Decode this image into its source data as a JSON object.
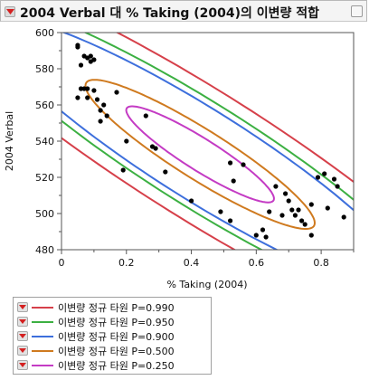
{
  "header": {
    "title": "2004 Verbal 대 % Taking (2004)의 이변량 적합"
  },
  "colors": {
    "p990": "#d6404a",
    "p950": "#3cb042",
    "p900": "#3d6fdc",
    "p500": "#cf7a1f",
    "p250": "#c43bc4",
    "points": "#000000",
    "disclosure": "#d42020"
  },
  "legend": {
    "items": [
      {
        "label": "이변량 정규 타원 P=0.990",
        "color": "#d6404a"
      },
      {
        "label": "이변량 정규 타원 P=0.950",
        "color": "#3cb042"
      },
      {
        "label": "이변량 정규 타원 P=0.900",
        "color": "#3d6fdc"
      },
      {
        "label": "이변량 정규 타원 P=0.500",
        "color": "#cf7a1f"
      },
      {
        "label": "이변량 정규 타원 P=0.250",
        "color": "#c43bc4"
      }
    ]
  },
  "chart_data": {
    "type": "scatter",
    "xlabel": "% Taking (2004)",
    "ylabel": "2004 Verbal",
    "xlim": [
      0,
      0.9
    ],
    "ylim": [
      480,
      600
    ],
    "xticks": [
      "0",
      "0.2",
      "0.4",
      "0.6",
      "0.8"
    ],
    "xtick_values": [
      0,
      0.2,
      0.4,
      0.6,
      0.8
    ],
    "yticks": [
      "480",
      "500",
      "520",
      "540",
      "560",
      "580",
      "600"
    ],
    "ytick_values": [
      480,
      500,
      520,
      540,
      560,
      580,
      600
    ],
    "grid": false,
    "points": [
      [
        0.05,
        593
      ],
      [
        0.05,
        592
      ],
      [
        0.07,
        587
      ],
      [
        0.08,
        586
      ],
      [
        0.09,
        584
      ],
      [
        0.1,
        585
      ],
      [
        0.09,
        587
      ],
      [
        0.06,
        582
      ],
      [
        0.06,
        569
      ],
      [
        0.07,
        569
      ],
      [
        0.08,
        569
      ],
      [
        0.1,
        568
      ],
      [
        0.08,
        564
      ],
      [
        0.05,
        564
      ],
      [
        0.11,
        563
      ],
      [
        0.13,
        560
      ],
      [
        0.12,
        557
      ],
      [
        0.14,
        554
      ],
      [
        0.17,
        567
      ],
      [
        0.12,
        551
      ],
      [
        0.2,
        540
      ],
      [
        0.19,
        524
      ],
      [
        0.26,
        554
      ],
      [
        0.28,
        537
      ],
      [
        0.29,
        536
      ],
      [
        0.32,
        523
      ],
      [
        0.4,
        507
      ],
      [
        0.49,
        501
      ],
      [
        0.52,
        528
      ],
      [
        0.52,
        496
      ],
      [
        0.53,
        518
      ],
      [
        0.56,
        527
      ],
      [
        0.6,
        488
      ],
      [
        0.63,
        487
      ],
      [
        0.62,
        491
      ],
      [
        0.64,
        501
      ],
      [
        0.66,
        515
      ],
      [
        0.68,
        499
      ],
      [
        0.69,
        511
      ],
      [
        0.7,
        507
      ],
      [
        0.71,
        502
      ],
      [
        0.72,
        499
      ],
      [
        0.73,
        502
      ],
      [
        0.74,
        496
      ],
      [
        0.75,
        494
      ],
      [
        0.77,
        488
      ],
      [
        0.77,
        505
      ],
      [
        0.79,
        520
      ],
      [
        0.81,
        522
      ],
      [
        0.82,
        503
      ],
      [
        0.84,
        519
      ],
      [
        0.85,
        515
      ],
      [
        0.87,
        498
      ]
    ],
    "series": [
      {
        "name": "이변량 정규 타원 P=0.990",
        "type": "ellipse",
        "mean": [
          0.427,
          532.7
        ],
        "sd": [
          0.3,
          35.0
        ],
        "r": -0.92,
        "p": 0.99
      },
      {
        "name": "이변량 정규 타원 P=0.950",
        "type": "ellipse",
        "mean": [
          0.427,
          532.7
        ],
        "sd": [
          0.3,
          35.0
        ],
        "r": -0.92,
        "p": 0.95
      },
      {
        "name": "이변량 정규 타원 P=0.900",
        "type": "ellipse",
        "mean": [
          0.427,
          532.7
        ],
        "sd": [
          0.3,
          35.0
        ],
        "r": -0.92,
        "p": 0.9
      },
      {
        "name": "이변량 정규 타원 P=0.500",
        "type": "ellipse",
        "mean": [
          0.427,
          532.7
        ],
        "sd": [
          0.3,
          35.0
        ],
        "r": -0.92,
        "p": 0.5
      },
      {
        "name": "이변량 정규 타원 P=0.250",
        "type": "ellipse",
        "mean": [
          0.427,
          532.7
        ],
        "sd": [
          0.3,
          35.0
        ],
        "r": -0.92,
        "p": 0.25
      }
    ]
  }
}
